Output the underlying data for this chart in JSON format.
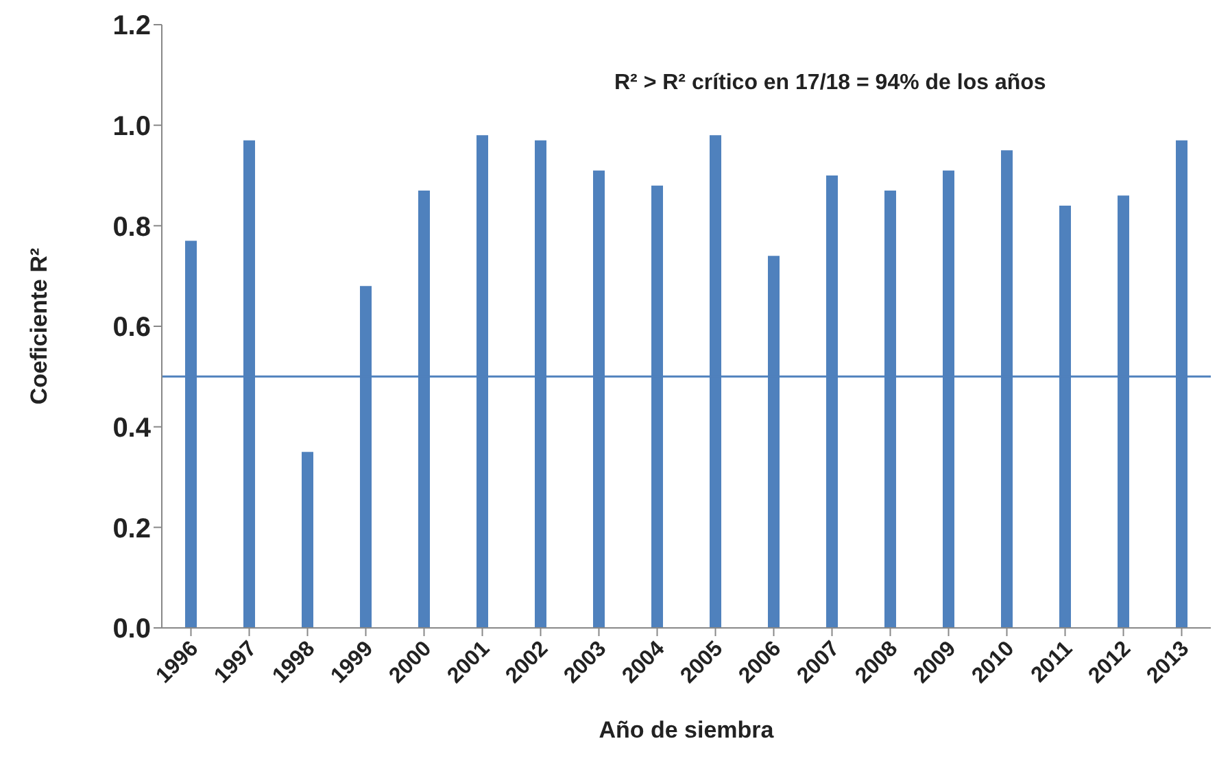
{
  "chart_data": {
    "type": "bar",
    "xlabel": "Año de siembra",
    "ylabel": "Coeficiente R²",
    "annotations": [
      "R² > R² crítico en 17/18 = 94% de los años"
    ],
    "categories": [
      "1996",
      "1997",
      "1998",
      "1999",
      "2000",
      "2001",
      "2002",
      "2003",
      "2004",
      "2005",
      "2006",
      "2007",
      "2008",
      "2009",
      "2010",
      "2011",
      "2012",
      "2013"
    ],
    "values": [
      0.77,
      0.97,
      0.35,
      0.68,
      0.87,
      0.98,
      0.97,
      0.91,
      0.88,
      0.98,
      0.74,
      0.9,
      0.87,
      0.91,
      0.95,
      0.84,
      0.86,
      0.97
    ],
    "color": "#4f81bd",
    "ylim": [
      0,
      1.2
    ],
    "yticks": [
      {
        "value": 0,
        "label": "0.0"
      },
      {
        "value": 0.2,
        "label": "0.2"
      },
      {
        "value": 0.4,
        "label": "0.4"
      },
      {
        "value": 0.6,
        "label": "0.6"
      },
      {
        "value": 0.8,
        "label": "0.8"
      },
      {
        "value": 1,
        "label": "1.0"
      },
      {
        "value": 1.2,
        "label": "1.2"
      }
    ],
    "ref_lines": [
      {
        "axis": "y",
        "value": 0.5,
        "color": "#4f81bd"
      }
    ],
    "grid": false,
    "legend": false
  }
}
